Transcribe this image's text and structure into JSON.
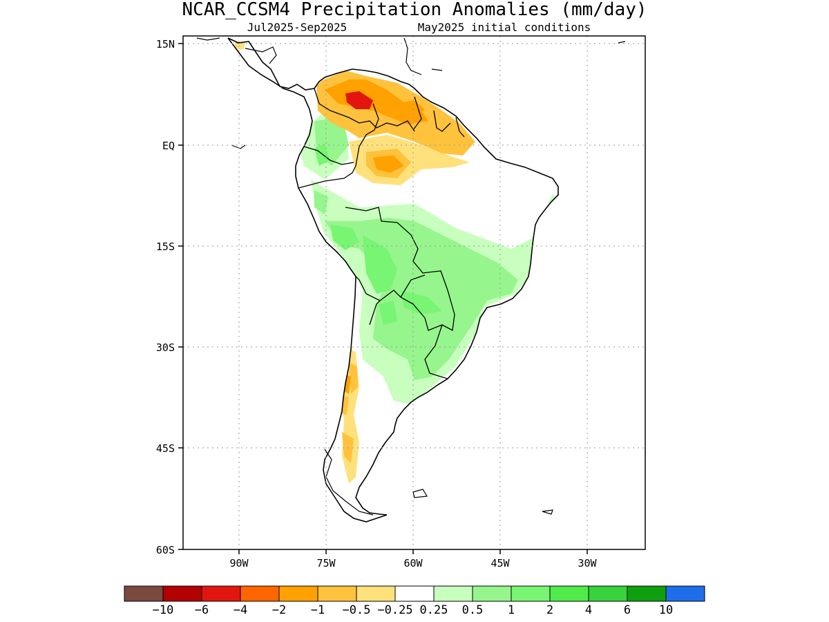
{
  "header": {
    "title": "NCAR_CCSM4 Precipitation Anomalies (mm/day)",
    "subtitle_left": "Jul2025-Sep2025",
    "subtitle_right": "May2025 initial conditions"
  },
  "map": {
    "lat_labels": [
      "15N",
      "EQ",
      "15S",
      "30S",
      "45S",
      "60S"
    ],
    "lon_labels": [
      "90W",
      "75W",
      "60W",
      "45W",
      "30W"
    ],
    "lat_range": [
      -60,
      15
    ],
    "lon_range": [
      -100,
      -20
    ],
    "grid": true
  },
  "colorbar": {
    "colors": [
      "#7a4a3f",
      "#b30000",
      "#e3160f",
      "#ff6600",
      "#ffa100",
      "#ffc23c",
      "#ffe17c",
      "#ffffff",
      "#c8ffbe",
      "#96f58c",
      "#78f573",
      "#50eb4b",
      "#37d23c",
      "#0fa00f",
      "#1e6eeb"
    ],
    "labels": [
      "-10",
      "-6",
      "-4",
      "-2",
      "-1",
      "-0.5",
      "-0.25",
      "0.25",
      "0.5",
      "1",
      "2",
      "4",
      "6",
      "10"
    ]
  },
  "colors": {
    "dry_strong": "#e3160f",
    "dry_mid": "#ffa100",
    "dry_weak": "#ffc23c",
    "dry_light": "#ffe17c",
    "wet_light": "#c8ffbe",
    "wet_mid": "#96f58c",
    "wet_strong": "#78f573"
  }
}
